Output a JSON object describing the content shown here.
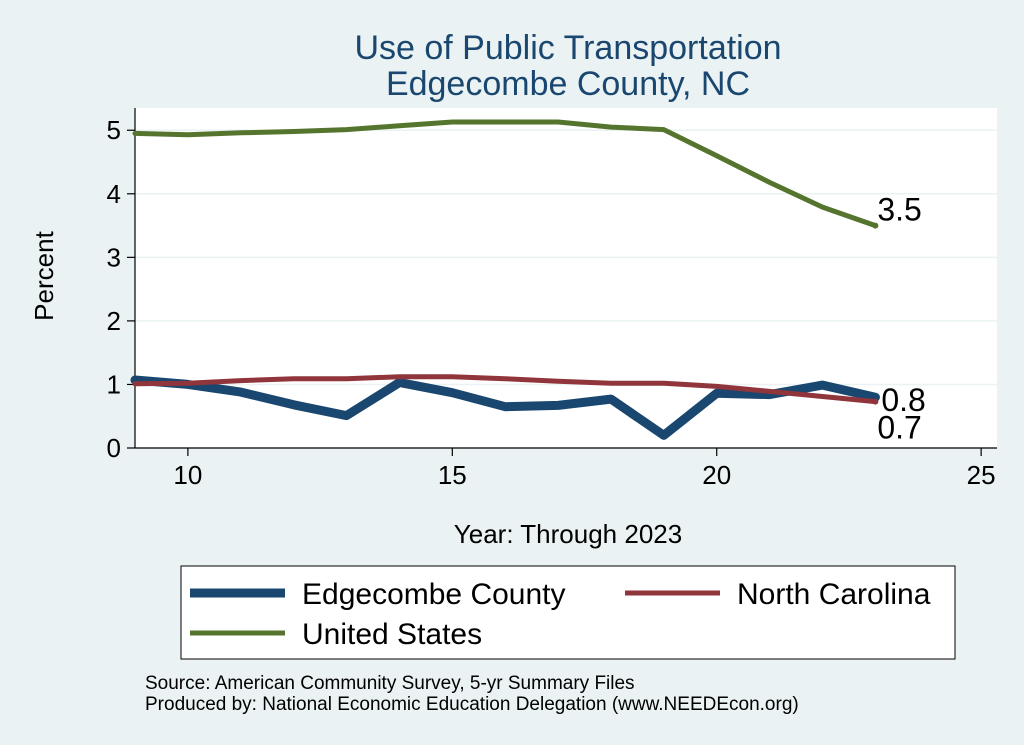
{
  "chart_data": {
    "type": "line",
    "title": [
      "Use of Public Transportation",
      "Edgecombe County, NC"
    ],
    "xlabel": "Year: Through 2023",
    "ylabel": "Percent",
    "xlim": [
      9,
      25.3
    ],
    "ylim": [
      0,
      5.35
    ],
    "xticks": [
      10,
      15,
      20,
      25
    ],
    "yticks": [
      0,
      1,
      2,
      3,
      4,
      5
    ],
    "grid": true,
    "legend_position": "bottom",
    "series": [
      {
        "name": "Edgecombe County",
        "color": "#1a476f",
        "x": [
          9,
          10,
          11,
          12,
          13,
          14,
          15,
          16,
          17,
          18,
          19,
          20,
          21,
          22,
          23
        ],
        "values": [
          1.07,
          1.0,
          0.88,
          0.68,
          0.51,
          1.03,
          0.87,
          0.65,
          0.67,
          0.77,
          0.2,
          0.86,
          0.84,
          0.99,
          0.8
        ],
        "end_label": "0.8"
      },
      {
        "name": "North Carolina",
        "color": "#90353b",
        "x": [
          9,
          10,
          11,
          12,
          13,
          14,
          15,
          16,
          17,
          18,
          19,
          20,
          21,
          22,
          23
        ],
        "values": [
          1.01,
          1.02,
          1.06,
          1.09,
          1.09,
          1.12,
          1.12,
          1.09,
          1.05,
          1.02,
          1.02,
          0.97,
          0.89,
          0.81,
          0.73
        ],
        "end_label": "0.7"
      },
      {
        "name": "United States",
        "color": "#55752f",
        "x": [
          9,
          10,
          11,
          12,
          13,
          14,
          15,
          16,
          17,
          18,
          19,
          20,
          21,
          22,
          23
        ],
        "values": [
          4.95,
          4.93,
          4.96,
          4.98,
          5.01,
          5.07,
          5.13,
          5.13,
          5.13,
          5.05,
          5.01,
          4.6,
          4.18,
          3.79,
          3.5
        ],
        "end_label": "3.5"
      }
    ]
  },
  "notes": {
    "source": "Source: American Community Survey, 5-yr Summary Files",
    "produced": "Produced by: National Economic Education Delegation (www.NEEDEcon.org)"
  }
}
